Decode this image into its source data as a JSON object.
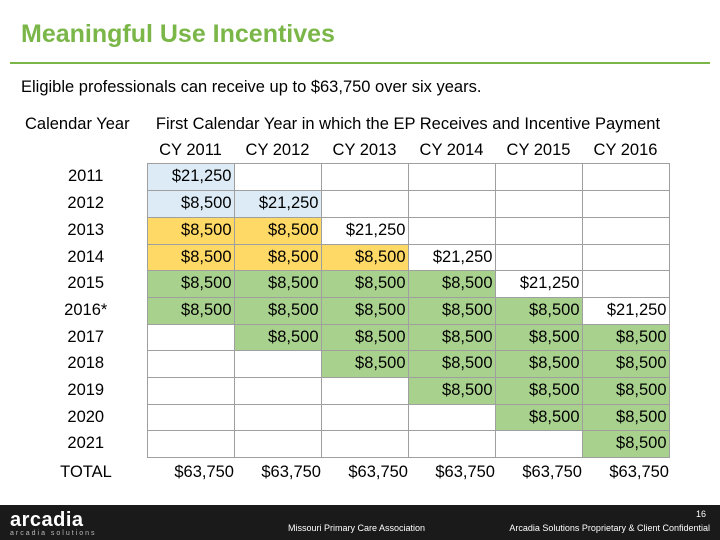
{
  "title": "Meaningful Use Incentives",
  "subtitle": "Eligible professionals can receive up to $63,750 over six years.",
  "table": {
    "row_header": "Calendar Year",
    "group_header": "First Calendar Year in which the EP Receives and Incentive Payment",
    "columns": [
      "CY 2011",
      "CY 2012",
      "CY 2013",
      "CY 2014",
      "CY 2015",
      "CY 2016"
    ],
    "rows": [
      {
        "year": "2011",
        "cells": [
          "$21,250",
          "",
          "",
          "",
          "",
          ""
        ]
      },
      {
        "year": "2012",
        "cells": [
          "$8,500",
          "$21,250",
          "",
          "",
          "",
          ""
        ]
      },
      {
        "year": "2013",
        "cells": [
          "$8,500",
          "$8,500",
          "$21,250",
          "",
          "",
          ""
        ]
      },
      {
        "year": "2014",
        "cells": [
          "$8,500",
          "$8,500",
          "$8,500",
          "$21,250",
          "",
          ""
        ]
      },
      {
        "year": "2015",
        "cells": [
          "$8,500",
          "$8,500",
          "$8,500",
          "$8,500",
          "$21,250",
          ""
        ]
      },
      {
        "year": "2016*",
        "cells": [
          "$8,500",
          "$8,500",
          "$8,500",
          "$8,500",
          "$8,500",
          "$21,250"
        ]
      },
      {
        "year": "2017",
        "cells": [
          "",
          "$8,500",
          "$8,500",
          "$8,500",
          "$8,500",
          "$8,500"
        ]
      },
      {
        "year": "2018",
        "cells": [
          "",
          "",
          "$8,500",
          "$8,500",
          "$8,500",
          "$8,500"
        ]
      },
      {
        "year": "2019",
        "cells": [
          "",
          "",
          "",
          "$8,500",
          "$8,500",
          "$8,500"
        ]
      },
      {
        "year": "2020",
        "cells": [
          "",
          "",
          "",
          "",
          "$8,500",
          "$8,500"
        ]
      },
      {
        "year": "2021",
        "cells": [
          "",
          "",
          "",
          "",
          "",
          "$8,500"
        ]
      }
    ],
    "total_label": "TOTAL",
    "totals": [
      "$63,750",
      "$63,750",
      "$63,750",
      "$63,750",
      "$63,750",
      "$63,750"
    ]
  },
  "colors": {
    "accent_green": "#7ab648",
    "cell_light_blue": "#dcebf5",
    "cell_yellow": "#ffd966",
    "cell_green": "#a9d18e"
  },
  "footer": {
    "logo_text": "arcadia",
    "logo_subtext": "arcadia solutions",
    "center_text": "Missouri Primary Care Association",
    "right_text": "Arcadia Solutions Proprietary & Client Confidential",
    "page_number": "16"
  }
}
